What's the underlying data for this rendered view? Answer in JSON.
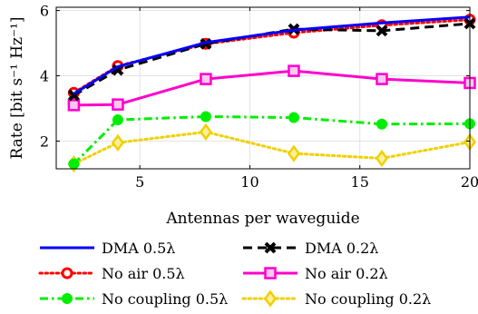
{
  "chart_data": {
    "type": "line",
    "xlabel": "Antennas per waveguide",
    "ylabel": "Rate [bit s⁻¹ Hz⁻¹]",
    "xlim": [
      1.2,
      20
    ],
    "ylim": [
      1.15,
      6.1
    ],
    "xticks": [
      5,
      10,
      15,
      20
    ],
    "yticks": [
      2,
      4,
      6
    ],
    "x": [
      2,
      4,
      8,
      12,
      16,
      20
    ],
    "grid": true,
    "legend_position": "below-plot",
    "series": [
      {
        "name": "DMA 0.5λ",
        "values": [
          3.45,
          4.28,
          5.02,
          5.4,
          5.62,
          5.8
        ],
        "color": "#0000ff",
        "line": "solid",
        "marker": "none"
      },
      {
        "name": "DMA 0.2λ",
        "values": [
          3.4,
          4.18,
          4.98,
          5.43,
          5.38,
          5.6
        ],
        "color": "#000000",
        "line": "dashed",
        "marker": "x"
      },
      {
        "name": "No air 0.5λ",
        "values": [
          3.48,
          4.3,
          4.98,
          5.32,
          5.55,
          5.72
        ],
        "color": "#ff0000",
        "line": "dotted",
        "marker": "o"
      },
      {
        "name": "No air 0.2λ",
        "values": [
          3.1,
          3.12,
          3.9,
          4.15,
          3.9,
          3.78
        ],
        "color": "#ff00cc",
        "line": "solid",
        "marker": "s"
      },
      {
        "name": "No coupling 0.5λ",
        "values": [
          1.3,
          2.65,
          2.75,
          2.72,
          2.52,
          2.53
        ],
        "color": "#00ee00",
        "line": "dashdot",
        "marker": "o"
      },
      {
        "name": "No coupling 0.2λ",
        "values": [
          1.3,
          1.95,
          2.28,
          1.62,
          1.47,
          1.97
        ],
        "color": "#f0d000",
        "line": "dotted",
        "marker": "d"
      }
    ]
  }
}
